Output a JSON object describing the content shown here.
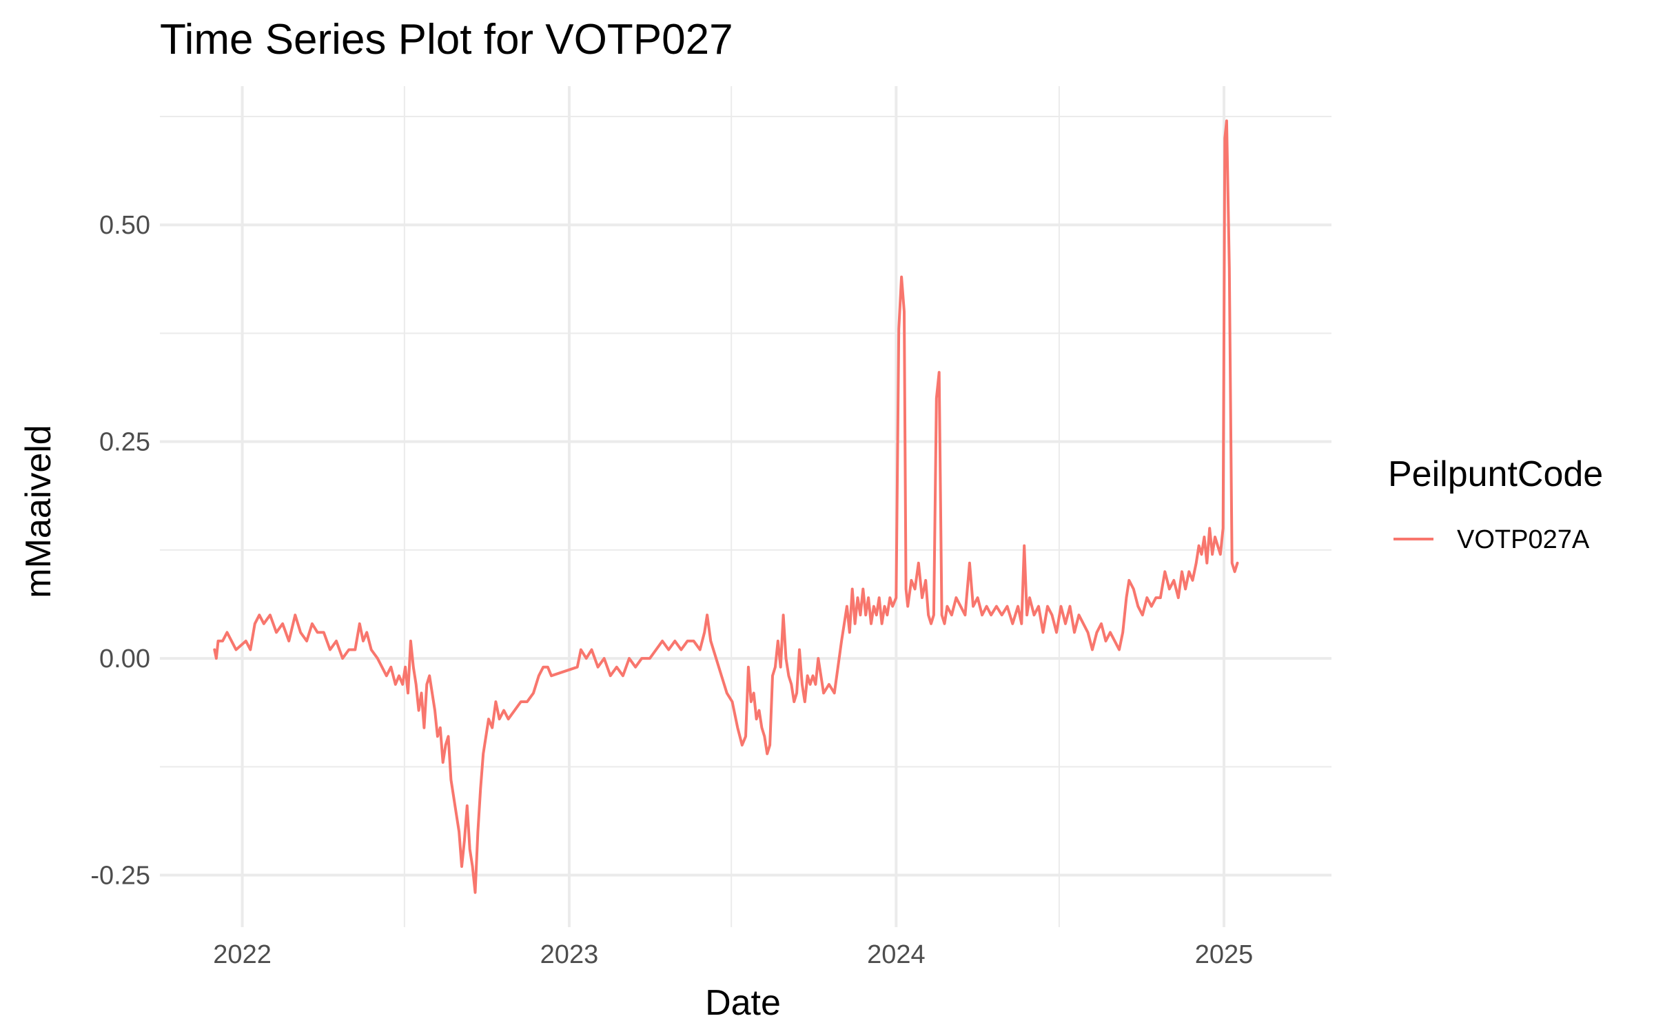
{
  "chart_data": {
    "type": "line",
    "title": "Time Series Plot for VOTP027",
    "xlabel": "Date",
    "ylabel": "mMaaiveld",
    "x_ticks": [
      "2022",
      "2023",
      "2024",
      "2025"
    ],
    "y_ticks": [
      "-0.25",
      "0.00",
      "0.25",
      "0.50"
    ],
    "xlim": [
      "2021-10-01",
      "2025-05-01"
    ],
    "ylim": [
      -0.31,
      0.66
    ],
    "grid": true,
    "legend": {
      "title": "PeilpuntCode",
      "placement": "right"
    },
    "series": [
      {
        "name": "VOTP027A",
        "color": "#F8766D",
        "points": [
          [
            "2021-12-01",
            0.01
          ],
          [
            "2021-12-03",
            0.0
          ],
          [
            "2021-12-05",
            0.02
          ],
          [
            "2021-12-10",
            0.02
          ],
          [
            "2021-12-15",
            0.03
          ],
          [
            "2021-12-20",
            0.02
          ],
          [
            "2021-12-25",
            0.01
          ],
          [
            "2022-01-05",
            0.02
          ],
          [
            "2022-01-10",
            0.01
          ],
          [
            "2022-01-15",
            0.04
          ],
          [
            "2022-01-20",
            0.05
          ],
          [
            "2022-01-25",
            0.04
          ],
          [
            "2022-02-01",
            0.05
          ],
          [
            "2022-02-08",
            0.03
          ],
          [
            "2022-02-15",
            0.04
          ],
          [
            "2022-02-22",
            0.02
          ],
          [
            "2022-03-01",
            0.05
          ],
          [
            "2022-03-07",
            0.03
          ],
          [
            "2022-03-14",
            0.02
          ],
          [
            "2022-03-20",
            0.04
          ],
          [
            "2022-03-26",
            0.03
          ],
          [
            "2022-04-02",
            0.03
          ],
          [
            "2022-04-09",
            0.01
          ],
          [
            "2022-04-16",
            0.02
          ],
          [
            "2022-04-23",
            0.0
          ],
          [
            "2022-04-30",
            0.01
          ],
          [
            "2022-05-07",
            0.01
          ],
          [
            "2022-05-12",
            0.04
          ],
          [
            "2022-05-16",
            0.02
          ],
          [
            "2022-05-20",
            0.03
          ],
          [
            "2022-05-25",
            0.01
          ],
          [
            "2022-06-01",
            0.0
          ],
          [
            "2022-06-06",
            -0.01
          ],
          [
            "2022-06-11",
            -0.02
          ],
          [
            "2022-06-16",
            -0.01
          ],
          [
            "2022-06-21",
            -0.03
          ],
          [
            "2022-06-25",
            -0.02
          ],
          [
            "2022-06-29",
            -0.03
          ],
          [
            "2022-07-02",
            -0.01
          ],
          [
            "2022-07-05",
            -0.04
          ],
          [
            "2022-07-08",
            0.02
          ],
          [
            "2022-07-11",
            -0.01
          ],
          [
            "2022-07-14",
            -0.03
          ],
          [
            "2022-07-17",
            -0.06
          ],
          [
            "2022-07-20",
            -0.04
          ],
          [
            "2022-07-23",
            -0.08
          ],
          [
            "2022-07-26",
            -0.03
          ],
          [
            "2022-07-29",
            -0.02
          ],
          [
            "2022-08-01",
            -0.04
          ],
          [
            "2022-08-04",
            -0.06
          ],
          [
            "2022-08-07",
            -0.09
          ],
          [
            "2022-08-10",
            -0.08
          ],
          [
            "2022-08-13",
            -0.12
          ],
          [
            "2022-08-16",
            -0.1
          ],
          [
            "2022-08-19",
            -0.09
          ],
          [
            "2022-08-22",
            -0.14
          ],
          [
            "2022-08-25",
            -0.16
          ],
          [
            "2022-08-28",
            -0.18
          ],
          [
            "2022-08-31",
            -0.2
          ],
          [
            "2022-09-03",
            -0.24
          ],
          [
            "2022-09-06",
            -0.21
          ],
          [
            "2022-09-09",
            -0.17
          ],
          [
            "2022-09-12",
            -0.22
          ],
          [
            "2022-09-15",
            -0.24
          ],
          [
            "2022-09-18",
            -0.27
          ],
          [
            "2022-09-21",
            -0.2
          ],
          [
            "2022-09-24",
            -0.15
          ],
          [
            "2022-09-27",
            -0.11
          ],
          [
            "2022-09-30",
            -0.09
          ],
          [
            "2022-10-03",
            -0.07
          ],
          [
            "2022-10-07",
            -0.08
          ],
          [
            "2022-10-11",
            -0.05
          ],
          [
            "2022-10-15",
            -0.07
          ],
          [
            "2022-10-20",
            -0.06
          ],
          [
            "2022-10-25",
            -0.07
          ],
          [
            "2022-11-01",
            -0.06
          ],
          [
            "2022-11-08",
            -0.05
          ],
          [
            "2022-11-15",
            -0.05
          ],
          [
            "2022-11-22",
            -0.04
          ],
          [
            "2022-11-28",
            -0.02
          ],
          [
            "2022-12-03",
            -0.01
          ],
          [
            "2022-12-08",
            -0.01
          ],
          [
            "2022-12-12",
            -0.02
          ],
          [
            "2023-01-10",
            -0.01
          ],
          [
            "2023-01-14",
            0.01
          ],
          [
            "2023-01-20",
            0.0
          ],
          [
            "2023-01-26",
            0.01
          ],
          [
            "2023-02-02",
            -0.01
          ],
          [
            "2023-02-09",
            0.0
          ],
          [
            "2023-02-16",
            -0.02
          ],
          [
            "2023-02-23",
            -0.01
          ],
          [
            "2023-03-02",
            -0.02
          ],
          [
            "2023-03-09",
            0.0
          ],
          [
            "2023-03-16",
            -0.01
          ],
          [
            "2023-03-23",
            0.0
          ],
          [
            "2023-04-01",
            0.0
          ],
          [
            "2023-04-08",
            0.01
          ],
          [
            "2023-04-15",
            0.02
          ],
          [
            "2023-04-22",
            0.01
          ],
          [
            "2023-04-29",
            0.02
          ],
          [
            "2023-05-06",
            0.01
          ],
          [
            "2023-05-13",
            0.02
          ],
          [
            "2023-05-20",
            0.02
          ],
          [
            "2023-05-27",
            0.01
          ],
          [
            "2023-06-01",
            0.03
          ],
          [
            "2023-06-04",
            0.05
          ],
          [
            "2023-06-08",
            0.02
          ],
          [
            "2023-06-14",
            0.0
          ],
          [
            "2023-06-20",
            -0.02
          ],
          [
            "2023-06-26",
            -0.04
          ],
          [
            "2023-07-02",
            -0.05
          ],
          [
            "2023-07-08",
            -0.08
          ],
          [
            "2023-07-13",
            -0.1
          ],
          [
            "2023-07-17",
            -0.09
          ],
          [
            "2023-07-20",
            -0.01
          ],
          [
            "2023-07-23",
            -0.05
          ],
          [
            "2023-07-26",
            -0.04
          ],
          [
            "2023-07-29",
            -0.07
          ],
          [
            "2023-08-01",
            -0.06
          ],
          [
            "2023-08-04",
            -0.08
          ],
          [
            "2023-08-07",
            -0.09
          ],
          [
            "2023-08-10",
            -0.11
          ],
          [
            "2023-08-13",
            -0.1
          ],
          [
            "2023-08-16",
            -0.02
          ],
          [
            "2023-08-19",
            -0.01
          ],
          [
            "2023-08-22",
            0.02
          ],
          [
            "2023-08-25",
            -0.01
          ],
          [
            "2023-08-28",
            0.05
          ],
          [
            "2023-08-31",
            0.0
          ],
          [
            "2023-09-03",
            -0.02
          ],
          [
            "2023-09-06",
            -0.03
          ],
          [
            "2023-09-09",
            -0.05
          ],
          [
            "2023-09-12",
            -0.04
          ],
          [
            "2023-09-15",
            0.01
          ],
          [
            "2023-09-18",
            -0.03
          ],
          [
            "2023-09-21",
            -0.05
          ],
          [
            "2023-09-24",
            -0.02
          ],
          [
            "2023-09-27",
            -0.03
          ],
          [
            "2023-09-30",
            -0.02
          ],
          [
            "2023-10-03",
            -0.03
          ],
          [
            "2023-10-06",
            0.0
          ],
          [
            "2023-10-09",
            -0.02
          ],
          [
            "2023-10-12",
            -0.04
          ],
          [
            "2023-10-18",
            -0.03
          ],
          [
            "2023-10-24",
            -0.04
          ],
          [
            "2023-10-28",
            -0.01
          ],
          [
            "2023-11-01",
            0.02
          ],
          [
            "2023-11-04",
            0.04
          ],
          [
            "2023-11-07",
            0.06
          ],
          [
            "2023-11-10",
            0.03
          ],
          [
            "2023-11-13",
            0.08
          ],
          [
            "2023-11-16",
            0.04
          ],
          [
            "2023-11-19",
            0.07
          ],
          [
            "2023-11-22",
            0.05
          ],
          [
            "2023-11-25",
            0.08
          ],
          [
            "2023-11-28",
            0.05
          ],
          [
            "2023-12-01",
            0.07
          ],
          [
            "2023-12-04",
            0.04
          ],
          [
            "2023-12-07",
            0.06
          ],
          [
            "2023-12-10",
            0.05
          ],
          [
            "2023-12-13",
            0.07
          ],
          [
            "2023-12-16",
            0.04
          ],
          [
            "2023-12-19",
            0.06
          ],
          [
            "2023-12-22",
            0.05
          ],
          [
            "2023-12-25",
            0.07
          ],
          [
            "2023-12-28",
            0.06
          ],
          [
            "2024-01-01",
            0.07
          ],
          [
            "2024-01-04",
            0.38
          ],
          [
            "2024-01-07",
            0.44
          ],
          [
            "2024-01-10",
            0.4
          ],
          [
            "2024-01-12",
            0.08
          ],
          [
            "2024-01-14",
            0.06
          ],
          [
            "2024-01-18",
            0.09
          ],
          [
            "2024-01-22",
            0.08
          ],
          [
            "2024-01-26",
            0.11
          ],
          [
            "2024-01-30",
            0.07
          ],
          [
            "2024-02-03",
            0.09
          ],
          [
            "2024-02-06",
            0.05
          ],
          [
            "2024-02-09",
            0.04
          ],
          [
            "2024-02-12",
            0.05
          ],
          [
            "2024-02-15",
            0.3
          ],
          [
            "2024-02-18",
            0.33
          ],
          [
            "2024-02-21",
            0.05
          ],
          [
            "2024-02-24",
            0.04
          ],
          [
            "2024-02-27",
            0.06
          ],
          [
            "2024-03-03",
            0.05
          ],
          [
            "2024-03-08",
            0.07
          ],
          [
            "2024-03-13",
            0.06
          ],
          [
            "2024-03-18",
            0.05
          ],
          [
            "2024-03-23",
            0.11
          ],
          [
            "2024-03-27",
            0.06
          ],
          [
            "2024-04-01",
            0.07
          ],
          [
            "2024-04-06",
            0.05
          ],
          [
            "2024-04-11",
            0.06
          ],
          [
            "2024-04-16",
            0.05
          ],
          [
            "2024-04-22",
            0.06
          ],
          [
            "2024-04-28",
            0.05
          ],
          [
            "2024-05-04",
            0.06
          ],
          [
            "2024-05-10",
            0.04
          ],
          [
            "2024-05-16",
            0.06
          ],
          [
            "2024-05-20",
            0.04
          ],
          [
            "2024-05-23",
            0.13
          ],
          [
            "2024-05-26",
            0.05
          ],
          [
            "2024-05-29",
            0.07
          ],
          [
            "2024-06-03",
            0.05
          ],
          [
            "2024-06-08",
            0.06
          ],
          [
            "2024-06-13",
            0.03
          ],
          [
            "2024-06-18",
            0.06
          ],
          [
            "2024-06-23",
            0.05
          ],
          [
            "2024-06-28",
            0.03
          ],
          [
            "2024-07-03",
            0.06
          ],
          [
            "2024-07-08",
            0.04
          ],
          [
            "2024-07-13",
            0.06
          ],
          [
            "2024-07-18",
            0.03
          ],
          [
            "2024-07-23",
            0.05
          ],
          [
            "2024-07-28",
            0.04
          ],
          [
            "2024-08-02",
            0.03
          ],
          [
            "2024-08-07",
            0.01
          ],
          [
            "2024-08-12",
            0.03
          ],
          [
            "2024-08-17",
            0.04
          ],
          [
            "2024-08-22",
            0.02
          ],
          [
            "2024-08-27",
            0.03
          ],
          [
            "2024-09-01",
            0.02
          ],
          [
            "2024-09-06",
            0.01
          ],
          [
            "2024-09-10",
            0.03
          ],
          [
            "2024-09-14",
            0.07
          ],
          [
            "2024-09-17",
            0.09
          ],
          [
            "2024-09-22",
            0.08
          ],
          [
            "2024-09-27",
            0.06
          ],
          [
            "2024-10-02",
            0.05
          ],
          [
            "2024-10-07",
            0.07
          ],
          [
            "2024-10-12",
            0.06
          ],
          [
            "2024-10-17",
            0.07
          ],
          [
            "2024-10-22",
            0.07
          ],
          [
            "2024-10-27",
            0.1
          ],
          [
            "2024-11-01",
            0.08
          ],
          [
            "2024-11-06",
            0.09
          ],
          [
            "2024-11-11",
            0.07
          ],
          [
            "2024-11-15",
            0.1
          ],
          [
            "2024-11-19",
            0.08
          ],
          [
            "2024-11-23",
            0.1
          ],
          [
            "2024-11-27",
            0.09
          ],
          [
            "2024-12-01",
            0.11
          ],
          [
            "2024-12-04",
            0.13
          ],
          [
            "2024-12-07",
            0.12
          ],
          [
            "2024-12-10",
            0.14
          ],
          [
            "2024-12-13",
            0.11
          ],
          [
            "2024-12-16",
            0.15
          ],
          [
            "2024-12-19",
            0.12
          ],
          [
            "2024-12-22",
            0.14
          ],
          [
            "2024-12-25",
            0.13
          ],
          [
            "2024-12-28",
            0.12
          ],
          [
            "2024-12-31",
            0.15
          ],
          [
            "2025-01-02",
            0.6
          ],
          [
            "2025-01-04",
            0.62
          ],
          [
            "2025-01-07",
            0.45
          ],
          [
            "2025-01-10",
            0.11
          ],
          [
            "2025-01-13",
            0.1
          ],
          [
            "2025-01-16",
            0.11
          ]
        ]
      }
    ]
  }
}
